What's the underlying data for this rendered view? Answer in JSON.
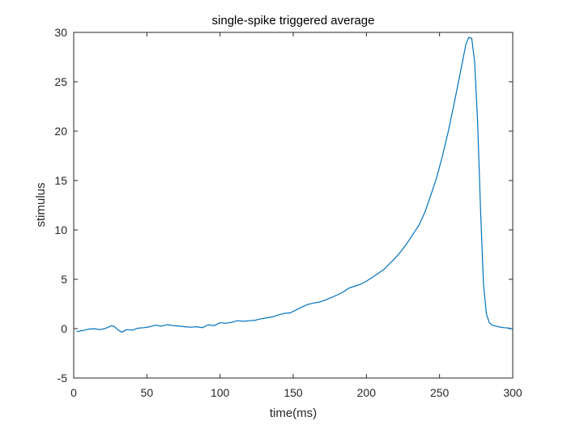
{
  "chart_data": {
    "type": "line",
    "title": "single-spike triggered average",
    "xlabel": "time(ms)",
    "ylabel": "stimulus",
    "xlim": [
      0,
      300
    ],
    "ylim": [
      -5,
      30
    ],
    "xticks": [
      0,
      50,
      100,
      150,
      200,
      250,
      300
    ],
    "yticks": [
      -5,
      0,
      5,
      10,
      15,
      20,
      25,
      30
    ],
    "xtick_labels": [
      "0",
      "50",
      "100",
      "150",
      "200",
      "250",
      "300"
    ],
    "ytick_labels": [
      "-5",
      "0",
      "5",
      "10",
      "15",
      "20",
      "25",
      "30"
    ],
    "grid": false,
    "box": true,
    "series": [
      {
        "color": "#0072BD",
        "x": [
          2,
          6,
          10,
          14,
          18,
          22,
          26,
          28,
          30,
          33,
          36,
          40,
          44,
          48,
          52,
          56,
          60,
          64,
          68,
          72,
          76,
          80,
          84,
          88,
          92,
          96,
          100,
          104,
          108,
          112,
          116,
          120,
          124,
          128,
          132,
          136,
          140,
          144,
          148,
          152,
          156,
          160,
          164,
          168,
          172,
          176,
          180,
          184,
          188,
          192,
          196,
          200,
          204,
          208,
          212,
          216,
          220,
          224,
          228,
          232,
          236,
          240,
          244,
          248,
          252,
          256,
          260,
          264,
          268,
          270,
          272,
          274,
          276,
          278,
          280,
          282,
          284,
          286,
          290,
          294,
          298,
          300
        ],
        "y": [
          -0.3,
          -0.2,
          -0.05,
          0.0,
          -0.1,
          0.05,
          0.3,
          0.2,
          -0.1,
          -0.35,
          -0.1,
          -0.15,
          0.05,
          0.1,
          0.2,
          0.35,
          0.25,
          0.4,
          0.3,
          0.25,
          0.2,
          0.15,
          0.2,
          0.1,
          0.4,
          0.3,
          0.6,
          0.55,
          0.65,
          0.8,
          0.75,
          0.8,
          0.85,
          1.0,
          1.1,
          1.2,
          1.4,
          1.55,
          1.6,
          1.9,
          2.2,
          2.45,
          2.6,
          2.7,
          2.9,
          3.15,
          3.4,
          3.7,
          4.1,
          4.3,
          4.5,
          4.8,
          5.2,
          5.6,
          6.0,
          6.6,
          7.2,
          7.9,
          8.7,
          9.6,
          10.5,
          11.8,
          13.5,
          15.3,
          17.5,
          20.0,
          22.8,
          25.8,
          28.8,
          29.5,
          29.4,
          27.0,
          21.0,
          12.0,
          4.5,
          1.5,
          0.6,
          0.35,
          0.2,
          0.1,
          0.05,
          -0.05
        ]
      }
    ]
  }
}
